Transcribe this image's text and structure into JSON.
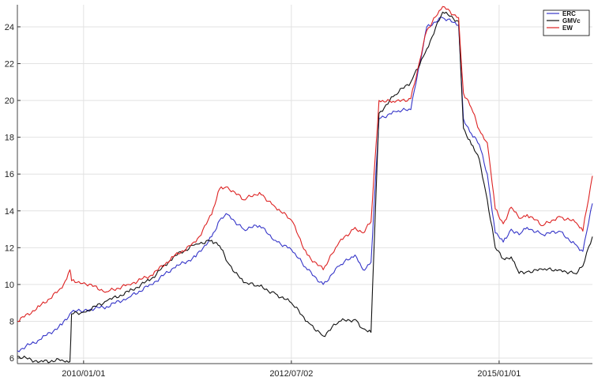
{
  "chart_data": {
    "type": "line",
    "title": "",
    "xlabel": "",
    "ylabel": "",
    "grid": true,
    "legend_position": "top-right",
    "x_axis": {
      "type": "date",
      "range": [
        "2009-03-16",
        "2016-02-15"
      ],
      "tick_labels": [
        "2010/01/01",
        "2012/07/02",
        "2015/01/01"
      ],
      "tick_dates": [
        "2010-01-01",
        "2012-07-02",
        "2015-01-01"
      ]
    },
    "ylim": [
      5.7,
      25.2
    ],
    "y_ticks": [
      6,
      8,
      10,
      12,
      14,
      16,
      18,
      20,
      22,
      24
    ],
    "x": [
      "2009-03-16",
      "2009-06-22",
      "2009-09-28",
      "2009-11-02",
      "2009-11-09",
      "2010-01-04",
      "2010-04-12",
      "2010-07-19",
      "2010-10-25",
      "2011-01-31",
      "2011-05-09",
      "2011-07-18",
      "2011-08-22",
      "2011-09-26",
      "2011-12-05",
      "2012-02-13",
      "2012-04-23",
      "2012-07-02",
      "2012-09-10",
      "2012-11-19",
      "2013-01-28",
      "2013-04-08",
      "2013-05-13",
      "2013-06-17",
      "2013-07-22",
      "2013-09-30",
      "2013-12-09",
      "2014-02-17",
      "2014-04-28",
      "2014-07-07",
      "2014-07-28",
      "2014-09-01",
      "2014-10-06",
      "2014-11-10",
      "2014-12-15",
      "2015-01-19",
      "2015-02-23",
      "2015-03-30",
      "2015-05-04",
      "2015-07-13",
      "2015-09-21",
      "2015-11-30",
      "2016-01-04",
      "2016-02-15"
    ],
    "series": [
      {
        "name": "ERC",
        "color": "#3535c8",
        "values": [
          6.4,
          7.0,
          7.8,
          8.4,
          8.5,
          8.6,
          8.8,
          9.3,
          10.0,
          10.9,
          11.5,
          12.6,
          13.5,
          13.8,
          13.0,
          13.2,
          12.4,
          11.9,
          10.8,
          10.0,
          11.0,
          11.6,
          10.8,
          11.2,
          19.0,
          19.4,
          19.5,
          24.0,
          24.5,
          24.1,
          19.0,
          18.2,
          17.6,
          16.0,
          12.8,
          12.3,
          13.0,
          12.7,
          13.1,
          12.7,
          12.9,
          12.2,
          11.8,
          14.4
        ]
      },
      {
        "name": "GMVc",
        "color": "#111111",
        "values": [
          6.1,
          5.8,
          5.9,
          5.8,
          8.4,
          8.5,
          9.1,
          9.6,
          10.3,
          11.5,
          12.2,
          12.4,
          12.1,
          11.2,
          10.1,
          9.9,
          9.5,
          9.0,
          8.0,
          7.2,
          8.0,
          8.1,
          7.6,
          7.4,
          19.3,
          20.3,
          21.0,
          22.8,
          24.8,
          24.3,
          18.5,
          17.6,
          16.8,
          14.6,
          12.0,
          11.4,
          11.5,
          10.6,
          10.7,
          10.8,
          10.8,
          10.6,
          11.0,
          12.6
        ]
      },
      {
        "name": "EW",
        "color": "#dd2222",
        "values": [
          8.0,
          8.8,
          9.8,
          10.8,
          10.2,
          10.1,
          9.6,
          10.0,
          10.5,
          11.5,
          12.3,
          13.8,
          15.2,
          15.3,
          14.6,
          15.0,
          14.2,
          13.5,
          11.6,
          10.8,
          12.3,
          13.1,
          12.8,
          13.4,
          20.0,
          19.9,
          20.1,
          23.8,
          25.1,
          24.5,
          20.4,
          19.6,
          18.4,
          17.7,
          14.1,
          13.3,
          14.2,
          13.6,
          13.8,
          13.2,
          13.7,
          13.4,
          12.9,
          15.9
        ]
      }
    ]
  }
}
